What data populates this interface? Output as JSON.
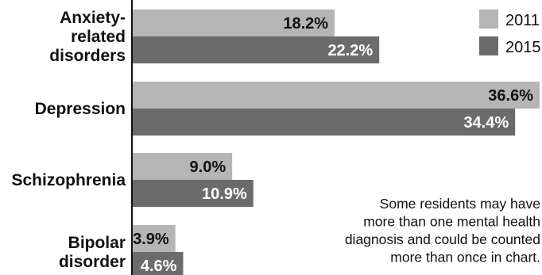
{
  "chart_data": {
    "type": "bar",
    "orientation": "horizontal",
    "categories": [
      "Anxiety-related disorders",
      "Depression",
      "Schizophrenia",
      "Bipolar disorder"
    ],
    "category_label_lines": [
      [
        "Anxiety-",
        "related",
        "disorders"
      ],
      [
        "Depression"
      ],
      [
        "Schizophrenia"
      ],
      [
        "Bipolar",
        "disorder"
      ]
    ],
    "series": [
      {
        "name": "2011",
        "values": [
          18.2,
          36.6,
          9.0,
          3.9
        ],
        "labels": [
          "18.2%",
          "36.6%",
          "9.0%",
          "3.9%"
        ],
        "color": "#b5b5b5",
        "label_color": "#111111"
      },
      {
        "name": "2015",
        "values": [
          22.2,
          34.4,
          10.9,
          4.6
        ],
        "labels": [
          "22.2%",
          "34.4%",
          "10.9%",
          "4.6%"
        ],
        "color": "#6b6b6b",
        "label_color": "#ffffff"
      }
    ],
    "xlim": [
      0,
      36.6
    ],
    "legend_position": "top-right",
    "grid": false
  },
  "note": {
    "lines": [
      "Some residents may have",
      "more than one mental health",
      "diagnosis and could be counted",
      "more than once in chart."
    ]
  },
  "colors": {
    "axis": "#111111",
    "background": "#ffffff"
  }
}
